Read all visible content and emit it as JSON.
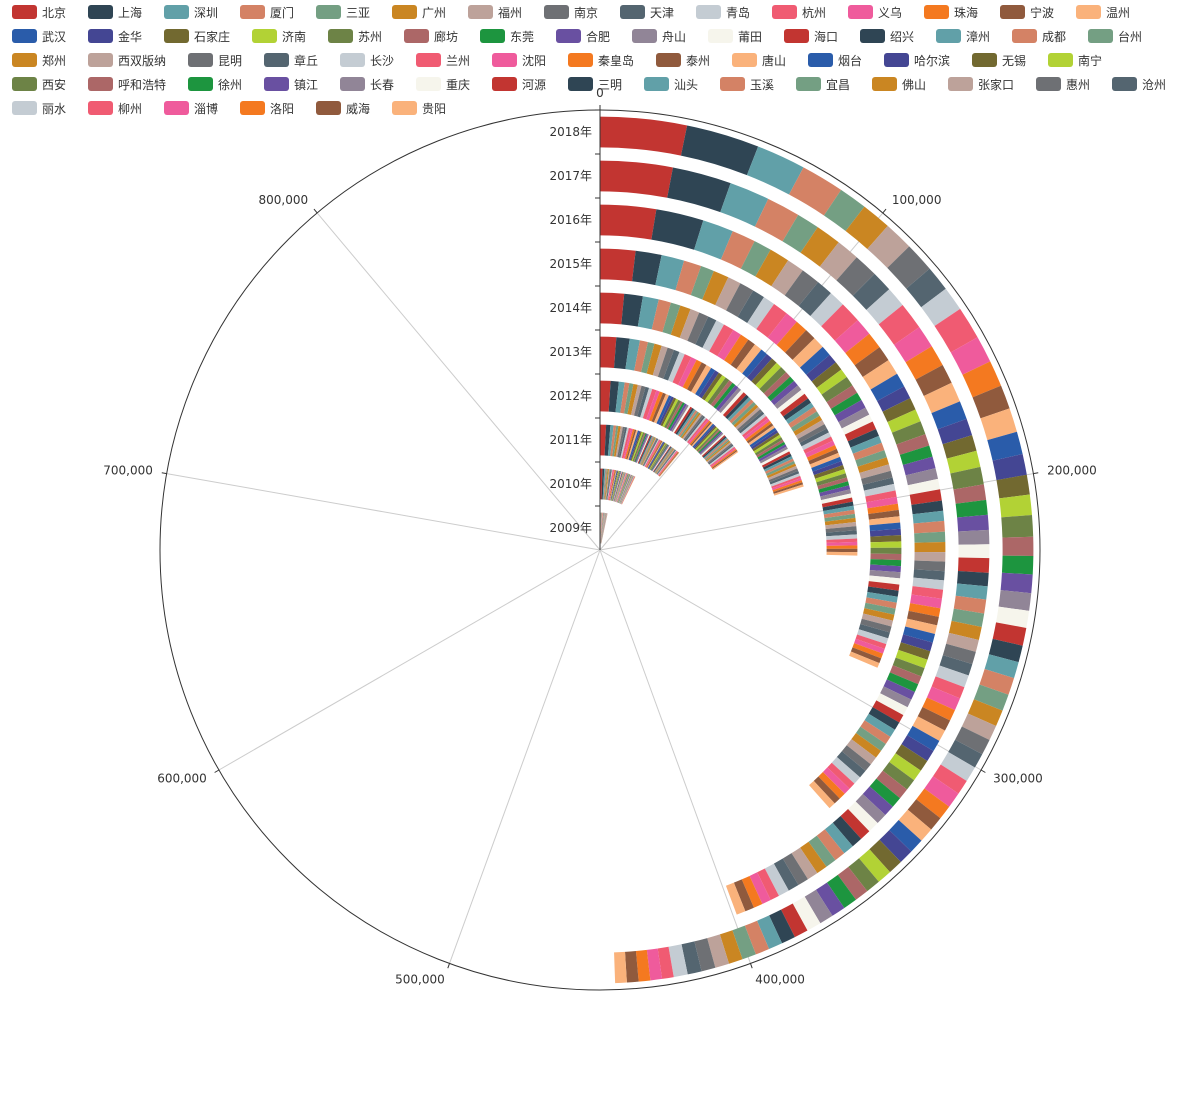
{
  "colors": [
    "#c23531",
    "#2f4554",
    "#61a0a8",
    "#d48265",
    "#749f83",
    "#ca8622",
    "#bda29a",
    "#6e7074",
    "#546570",
    "#c4ccd3",
    "#f05b72",
    "#ef5b9c",
    "#f47920",
    "#905a3d",
    "#fab27b",
    "#2a5caa",
    "#444693",
    "#726930",
    "#b2d235",
    "#6d8346",
    "#ac6767",
    "#1d953f",
    "#6950a1",
    "#918597",
    "#f6f5ec"
  ],
  "chart_data": {
    "type": "polar-bar-stacked",
    "categories": [
      "2009年",
      "2010年",
      "2011年",
      "2012年",
      "2013年",
      "2014年",
      "2015年",
      "2016年",
      "2017年",
      "2018年"
    ],
    "radial_axis_ticks": [
      "0",
      "100,000",
      "200,000",
      "300,000",
      "400,000",
      "500,000",
      "600,000",
      "700,000",
      "800,000"
    ],
    "angle_max": 900000,
    "series": [
      {
        "name": "北京",
        "values": [
          900,
          4300,
          7000,
          9000,
          11000,
          13500,
          17000,
          23500,
          27000,
          29000
        ]
      },
      {
        "name": "上海",
        "values": [
          1400,
          3300,
          5000,
          7000,
          9000,
          10500,
          12500,
          20000,
          22000,
          24500
        ]
      },
      {
        "name": "深圳",
        "values": [
          1000,
          2500,
          3600,
          5000,
          7000,
          9000,
          11000,
          13000,
          15000,
          16500
        ]
      },
      {
        "name": "厦门",
        "values": [
          1000,
          2000,
          3000,
          4000,
          5500,
          7000,
          8500,
          10000,
          12500,
          14500
        ]
      },
      {
        "name": "三亚",
        "values": [
          800,
          1800,
          2500,
          3500,
          4500,
          5500,
          6500,
          7500,
          8500,
          9500
        ]
      },
      {
        "name": "广州",
        "values": [
          900,
          2000,
          2800,
          3800,
          5000,
          6000,
          7500,
          8500,
          9500,
          10000
        ]
      },
      {
        "name": "福州",
        "values": [
          800,
          1600,
          2400,
          3200,
          4200,
          5200,
          6400,
          7400,
          8600,
          9800
        ]
      },
      {
        "name": "南京",
        "values": [
          900,
          1800,
          2600,
          3500,
          4500,
          5500,
          7000,
          8000,
          9000,
          10000
        ]
      },
      {
        "name": "天津",
        "values": [
          800,
          1600,
          2300,
          3100,
          4000,
          5000,
          6000,
          7000,
          7800,
          8500
        ]
      },
      {
        "name": "青岛",
        "values": [
          700,
          1500,
          2100,
          2900,
          3800,
          4800,
          5800,
          6800,
          7600,
          8200
        ]
      },
      {
        "name": "杭州",
        "values": [
          900,
          1800,
          2700,
          3700,
          4800,
          6000,
          7500,
          9000,
          10200,
          11000
        ]
      },
      {
        "name": "义乌",
        "values": [
          700,
          1400,
          2100,
          3000,
          4000,
          5000,
          6200,
          7400,
          8400,
          9000
        ]
      },
      {
        "name": "珠海",
        "values": [
          700,
          1400,
          2100,
          2900,
          3900,
          5000,
          6000,
          7000,
          8000,
          8800
        ]
      },
      {
        "name": "宁波",
        "values": [
          600,
          1300,
          1900,
          2700,
          3600,
          4500,
          5500,
          6500,
          7300,
          8000
        ]
      },
      {
        "name": "温州",
        "values": [
          600,
          1300,
          2000,
          2800,
          3700,
          4600,
          5700,
          6700,
          7500,
          8100
        ]
      },
      {
        "name": "武汉",
        "values": [
          500,
          1100,
          1700,
          2400,
          3200,
          4000,
          5000,
          6000,
          6900,
          7600
        ]
      },
      {
        "name": "金华",
        "values": [
          500,
          1000,
          1500,
          2200,
          2900,
          3700,
          4600,
          5500,
          6300,
          7000
        ]
      },
      {
        "name": "石家庄",
        "values": [
          500,
          1000,
          1500,
          2100,
          2800,
          3500,
          4300,
          5200,
          6000,
          6600
        ]
      },
      {
        "name": "济南",
        "values": [
          500,
          1000,
          1500,
          2100,
          2800,
          3500,
          4400,
          5300,
          6100,
          6800
        ]
      },
      {
        "name": "苏州",
        "values": [
          500,
          1100,
          1700,
          2400,
          3100,
          3900,
          4800,
          5700,
          6500,
          7200
        ]
      },
      {
        "name": "廊坊",
        "values": [
          400,
          900,
          1400,
          2000,
          2700,
          3400,
          4200,
          5000,
          5800,
          6400
        ]
      },
      {
        "name": "东莞",
        "values": [
          400,
          900,
          1400,
          1900,
          2500,
          3200,
          4000,
          4800,
          5500,
          6100
        ]
      },
      {
        "name": "合肥",
        "values": [
          400,
          900,
          1400,
          2000,
          2600,
          3300,
          4100,
          4900,
          5600,
          6200
        ]
      },
      {
        "name": "舟山",
        "values": [
          400,
          800,
          1300,
          1800,
          2400,
          3100,
          3800,
          4600,
          5300,
          5900
        ]
      },
      {
        "name": "莆田",
        "values": [
          400,
          800,
          1200,
          1700,
          2300,
          2900,
          3600,
          4400,
          5100,
          5700
        ]
      },
      {
        "name": "海口",
        "values": [
          400,
          900,
          1300,
          1900,
          2500,
          3200,
          3900,
          4700,
          5400,
          6000
        ]
      },
      {
        "name": "绍兴",
        "values": [
          400,
          800,
          1200,
          1700,
          2300,
          2900,
          3600,
          4300,
          5000,
          5600
        ]
      },
      {
        "name": "漳州",
        "values": [
          400,
          800,
          1200,
          1700,
          2200,
          2800,
          3500,
          4200,
          4900,
          5500
        ]
      },
      {
        "name": "成都",
        "values": [
          400,
          800,
          1300,
          1800,
          2400,
          3000,
          3700,
          4500,
          5200,
          5800
        ]
      },
      {
        "name": "台州",
        "values": [
          400,
          800,
          1200,
          1700,
          2300,
          2900,
          3600,
          4300,
          5000,
          5600
        ]
      },
      {
        "name": "郑州",
        "values": [
          400,
          800,
          1200,
          1700,
          2200,
          2800,
          3500,
          4200,
          4900,
          5500
        ]
      },
      {
        "name": "西双版纳",
        "values": [
          300,
          700,
          1100,
          1500,
          2000,
          2600,
          3200,
          3900,
          4500,
          5100
        ]
      },
      {
        "name": "昆明",
        "values": [
          300,
          700,
          1100,
          1600,
          2100,
          2700,
          3300,
          4000,
          4700,
          5300
        ]
      },
      {
        "name": "章丘",
        "values": [
          300,
          700,
          1000,
          1500,
          2000,
          2500,
          3100,
          3800,
          4400,
          5000
        ]
      },
      {
        "name": "长沙",
        "values": [
          300,
          700,
          1100,
          1500,
          2000,
          2600,
          3200,
          3900,
          4600,
          5200
        ]
      },
      {
        "name": "兰州",
        "values": [
          300,
          700,
          1100,
          1500,
          2000,
          2500,
          3100,
          3800,
          4400,
          5000
        ]
      },
      {
        "name": "沈阳",
        "values": [
          300,
          700,
          1100,
          1600,
          2100,
          2700,
          3300,
          4000,
          4700,
          5300
        ]
      },
      {
        "name": "秦皇岛",
        "values": [
          300,
          600,
          1000,
          1400,
          1900,
          2400,
          3000,
          3600,
          4200,
          4800
        ]
      },
      {
        "name": "泰州",
        "values": [
          300,
          600,
          1000,
          1400,
          1900,
          2400,
          3000,
          3600,
          4200,
          4800
        ]
      },
      {
        "name": "唐山",
        "values": [
          300,
          600,
          1000,
          1400,
          1900,
          2400,
          3000,
          3700,
          4300,
          4900
        ]
      },
      {
        "name": "烟台",
        "values": [
          300,
          600,
          1000,
          1400,
          1900,
          2400,
          3000,
          3700,
          4300,
          4900
        ]
      },
      {
        "name": "哈尔滨",
        "values": [
          300,
          600,
          1000,
          1400,
          1900,
          2400,
          3000,
          3700,
          4300,
          4900
        ]
      },
      {
        "name": "无锡",
        "values": [
          300,
          600,
          1000,
          1400,
          1900,
          2400,
          3000,
          3700,
          4300,
          4900
        ]
      },
      {
        "name": "南宁",
        "values": [
          300,
          600,
          1000,
          1400,
          1900,
          2400,
          3000,
          3700,
          4300,
          4900
        ]
      },
      {
        "name": "西安",
        "values": [
          300,
          600,
          1000,
          1400,
          1900,
          2400,
          3000,
          3700,
          4300,
          4900
        ]
      },
      {
        "name": "呼和浩特",
        "values": [
          300,
          600,
          900,
          1300,
          1800,
          2300,
          2900,
          3500,
          4100,
          4700
        ]
      },
      {
        "name": "徐州",
        "values": [
          300,
          600,
          900,
          1300,
          1800,
          2300,
          2900,
          3500,
          4100,
          4700
        ]
      },
      {
        "name": "镇江",
        "values": [
          300,
          600,
          900,
          1300,
          1800,
          2300,
          2900,
          3500,
          4100,
          4700
        ]
      },
      {
        "name": "长春",
        "values": [
          300,
          600,
          900,
          1300,
          1800,
          2300,
          2900,
          3500,
          4100,
          4700
        ]
      },
      {
        "name": "重庆",
        "values": [
          300,
          600,
          1000,
          1400,
          1900,
          2400,
          3000,
          3700,
          4300,
          4900
        ]
      },
      {
        "name": "河源",
        "values": [
          300,
          600,
          900,
          1300,
          1800,
          2300,
          2900,
          3500,
          4100,
          4700
        ]
      },
      {
        "name": "三明",
        "values": [
          300,
          600,
          900,
          1300,
          1800,
          2300,
          2900,
          3500,
          4100,
          4700
        ]
      },
      {
        "name": "汕头",
        "values": [
          300,
          600,
          900,
          1300,
          1800,
          2300,
          2900,
          3500,
          4100,
          4700
        ]
      },
      {
        "name": "玉溪",
        "values": [
          300,
          600,
          900,
          1300,
          1800,
          2300,
          2900,
          3500,
          4100,
          4700
        ]
      },
      {
        "name": "宜昌",
        "values": [
          300,
          600,
          900,
          1300,
          1800,
          2300,
          2900,
          3500,
          4100,
          4700
        ]
      },
      {
        "name": "佛山",
        "values": [
          300,
          600,
          900,
          1300,
          1800,
          2300,
          2900,
          3500,
          4100,
          4700
        ]
      },
      {
        "name": "张家口",
        "values": [
          300,
          600,
          900,
          1300,
          1800,
          2300,
          2900,
          3500,
          4100,
          4700
        ]
      },
      {
        "name": "惠州",
        "values": [
          300,
          600,
          900,
          1300,
          1800,
          2300,
          2900,
          3500,
          4100,
          4700
        ]
      },
      {
        "name": "沧州",
        "values": [
          300,
          600,
          900,
          1300,
          1800,
          2300,
          2900,
          3500,
          4100,
          4700
        ]
      },
      {
        "name": "丽水",
        "values": [
          300,
          600,
          900,
          1300,
          1800,
          2300,
          2900,
          3500,
          4100,
          4700
        ]
      },
      {
        "name": "柳州",
        "values": [
          200,
          500,
          800,
          1100,
          1500,
          1900,
          2400,
          2900,
          3400,
          3900
        ]
      },
      {
        "name": "淄博",
        "values": [
          200,
          500,
          800,
          1100,
          1500,
          1900,
          2400,
          2900,
          3400,
          3900
        ]
      },
      {
        "name": "洛阳",
        "values": [
          200,
          500,
          800,
          1100,
          1500,
          1900,
          2400,
          2900,
          3400,
          3900
        ]
      },
      {
        "name": "威海",
        "values": [
          200,
          500,
          800,
          1100,
          1500,
          1900,
          2400,
          2900,
          3400,
          3900
        ]
      },
      {
        "name": "贵阳",
        "values": [
          200,
          500,
          800,
          1100,
          1500,
          1900,
          2400,
          2900,
          3400,
          3900
        ]
      }
    ]
  }
}
